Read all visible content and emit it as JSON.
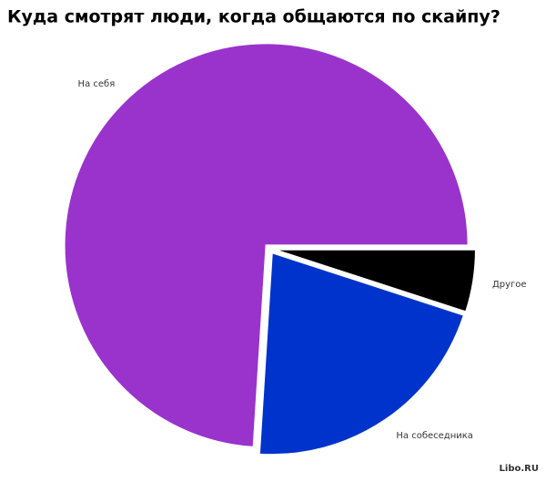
{
  "chart_data": {
    "type": "pie",
    "title": "Куда смотрят люди, когда общаются по скайпу?",
    "categories": [
      "На себя",
      "На собеседника",
      "Другое"
    ],
    "values": [
      74,
      21,
      5
    ],
    "colors": [
      "#9933cc",
      "#0033cc",
      "#000000"
    ],
    "watermark": "Libo.RU"
  }
}
